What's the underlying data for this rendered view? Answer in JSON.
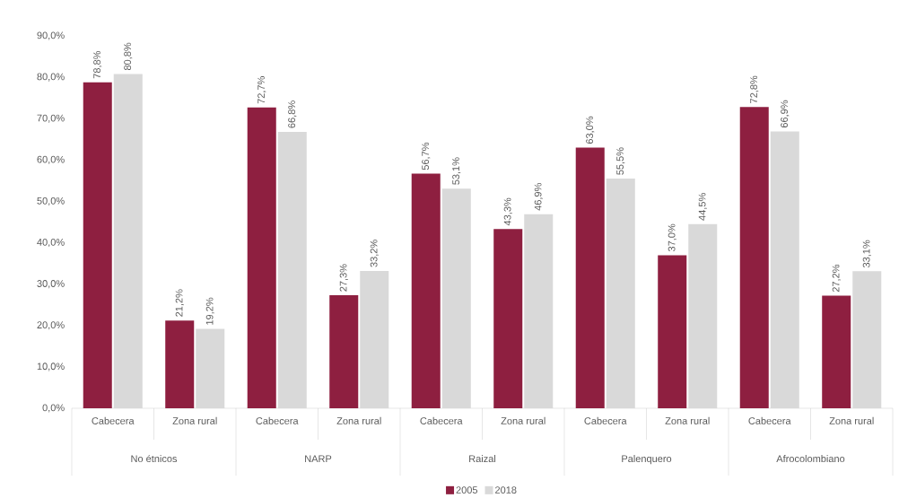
{
  "chart_data": {
    "type": "bar",
    "categories": [
      "Cabecera",
      "Zona rural",
      "Cabecera",
      "Zona rural",
      "Cabecera",
      "Zona rural",
      "Cabecera",
      "Zona rural",
      "Cabecera",
      "Zona rural"
    ],
    "annotations": [
      "No étnicos",
      "NARP",
      "Raizal",
      "Palenquero",
      "Afrocolombiano"
    ],
    "series": [
      {
        "name": "2005",
        "color": "#8e1f40",
        "values": [
          78.8,
          21.2,
          72.7,
          27.3,
          56.7,
          43.3,
          63.0,
          37.0,
          72.8,
          27.2
        ],
        "value_labels": [
          "78,8%",
          "21,2%",
          "72,7%",
          "27,3%",
          "56,7%",
          "43,3%",
          "63,0%",
          "37,0%",
          "72,8%",
          "27,2%"
        ]
      },
      {
        "name": "2018",
        "color": "#d9d9d9",
        "values": [
          80.8,
          19.2,
          66.8,
          33.2,
          53.1,
          46.9,
          55.5,
          44.5,
          66.9,
          33.1
        ],
        "value_labels": [
          "80,8%",
          "19,2%",
          "66,8%",
          "33,2%",
          "53,1%",
          "46,9%",
          "55,5%",
          "44,5%",
          "66,9%",
          "33,1%"
        ]
      }
    ],
    "ylim": [
      0,
      90
    ],
    "yticks": [
      {
        "value": 0,
        "label": "0,0%"
      },
      {
        "value": 10,
        "label": "10,0%"
      },
      {
        "value": 20,
        "label": "20,0%"
      },
      {
        "value": 30,
        "label": "30,0%"
      },
      {
        "value": 40,
        "label": "40,0%"
      },
      {
        "value": 50,
        "label": "50,0%"
      },
      {
        "value": 60,
        "label": "60,0%"
      },
      {
        "value": 70,
        "label": "70,0%"
      },
      {
        "value": 80,
        "label": "80,0%"
      },
      {
        "value": 90,
        "label": "90,0%"
      }
    ],
    "grid": false,
    "legend": "bottom"
  }
}
